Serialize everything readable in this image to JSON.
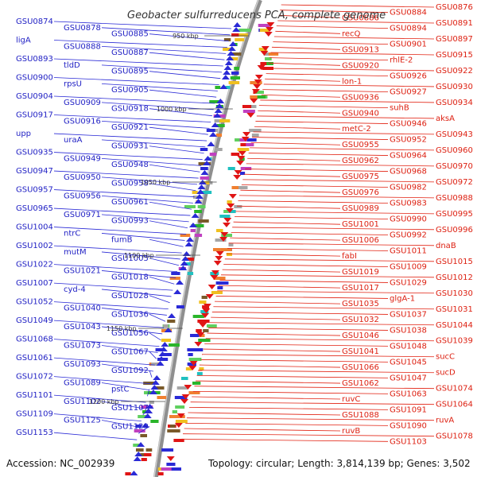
{
  "title": "Geobacter sulfurreducens PCA, complete genome",
  "footer": {
    "accession": "Accession: NC_002939",
    "topology": "Topology: circular; Length: 3,814,139 bp; Genes: 3,502"
  },
  "colors": {
    "left_gene_line": "#2a2ad6",
    "right_gene_line": "#e22010",
    "backbone": "#8f8f8f"
  },
  "ticks": [
    "950 kbp",
    "1000 kbp",
    "1050 kbp",
    "1100 kbp",
    "1150 kbp",
    "1200 kbp"
  ],
  "left_labels": [
    "GSU0874",
    "GSU0878",
    "GSU0885",
    "ligA",
    "GSU0888",
    "GSU0887",
    "GSU0893",
    "tldD",
    "GSU0895",
    "GSU0900",
    "rpsU",
    "GSU0905",
    "GSU0904",
    "GSU0909",
    "GSU0918",
    "GSU0917",
    "GSU0916",
    "GSU0921",
    "upp",
    "uraA",
    "GSU0931",
    "GSU0935",
    "GSU0949",
    "GSU0948",
    "GSU0947",
    "GSU0950",
    "GSU0958",
    "GSU0957",
    "GSU0956",
    "GSU0961",
    "GSU0965",
    "GSU0971",
    "GSU0993",
    "GSU1004",
    "ntrC",
    "fumB",
    "GSU1002",
    "mutM",
    "GSU1005",
    "GSU1022",
    "GSU1021",
    "GSU1018",
    "GSU1007",
    "cyd-4",
    "GSU1028",
    "GSU1052",
    "GSU1040",
    "GSU1036",
    "GSU1049",
    "GSU1043",
    "GSU1056",
    "GSU1068",
    "GSU1073",
    "GSU1067",
    "GSU1061",
    "GSU1093",
    "GSU1092",
    "GSU1072",
    "GSU1089",
    "pstC",
    "GSU1101",
    "GSU1102",
    "GSU1107",
    "GSU1109",
    "GSU1125",
    "GSU1129",
    "GSU1153"
  ],
  "right_labels": [
    "GSU0876",
    "GSU0884",
    "GSU0886",
    "GSU0891",
    "GSU0894",
    "recQ",
    "GSU0897",
    "GSU0901",
    "GSU0913",
    "GSU0915",
    "rhlE-2",
    "GSU0920",
    "GSU0922",
    "GSU0926",
    "lon-1",
    "GSU0930",
    "GSU0927",
    "GSU0936",
    "GSU0934",
    "suhB",
    "GSU0940",
    "aksA",
    "GSU0946",
    "metC-2",
    "GSU0943",
    "GSU0952",
    "GSU0955",
    "GSU0960",
    "GSU0964",
    "GSU0962",
    "GSU0970",
    "GSU0968",
    "GSU0975",
    "GSU0972",
    "GSU0982",
    "GSU0976",
    "GSU0988",
    "GSU0983",
    "GSU0989",
    "GSU0995",
    "GSU0990",
    "GSU1001",
    "GSU0996",
    "GSU0992",
    "GSU1006",
    "dnaB",
    "GSU1011",
    "fabI",
    "GSU1015",
    "GSU1009",
    "GSU1019",
    "GSU1012",
    "GSU1029",
    "GSU1017",
    "GSU1030",
    "glgA-1",
    "GSU1035",
    "GSU1031",
    "GSU1037",
    "GSU1032",
    "GSU1044",
    "GSU1038",
    "GSU1046",
    "GSU1039",
    "GSU1048",
    "GSU1041",
    "sucC",
    "GSU1045",
    "GSU1066",
    "sucD",
    "GSU1047",
    "GSU1062",
    "GSU1074",
    "GSU1063",
    "ruvC",
    "GSU1064",
    "GSU1091",
    "GSU1088",
    "ruvA",
    "GSU1090",
    "ruvB",
    "GSU1078",
    "GSU1103"
  ]
}
